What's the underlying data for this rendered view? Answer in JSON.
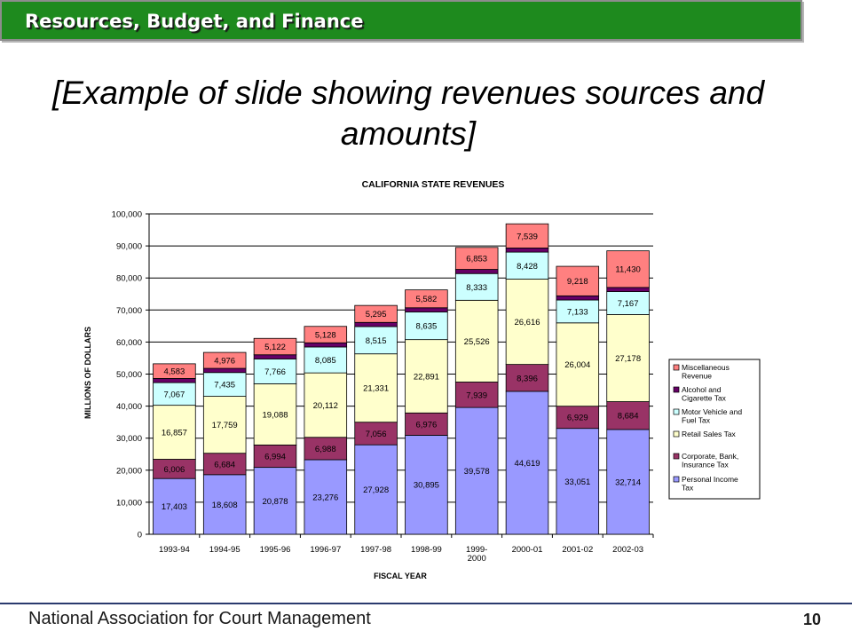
{
  "header": {
    "title": "Resources, Budget, and Finance"
  },
  "slide": {
    "title": "[Example of slide showing revenues sources and amounts]"
  },
  "footer": {
    "org": "National Association for Court Management",
    "page_number": "10"
  },
  "colors": {
    "header_bg": "#1e8a1e",
    "personal_income": "#9999ff",
    "corporate": "#993366",
    "retail_sales": "#ffffcc",
    "motor_vehicle": "#ccffff",
    "alcohol": "#660066",
    "misc": "#ff8080"
  },
  "chart_data": {
    "type": "bar",
    "stacked": true,
    "title": "CALIFORNIA STATE REVENUES",
    "xlabel": "FISCAL YEAR",
    "ylabel": "MILLIONS OF DOLLARS",
    "ylim": [
      0,
      100000
    ],
    "yticks": [
      "0",
      "10,000",
      "20,000",
      "30,000",
      "40,000",
      "50,000",
      "60,000",
      "70,000",
      "80,000",
      "90,000",
      "100,000"
    ],
    "grid": true,
    "legend_position": "right",
    "categories": [
      [
        "1993-94"
      ],
      [
        "1994-95"
      ],
      [
        "1995-96"
      ],
      [
        "1996-97"
      ],
      [
        "1997-98"
      ],
      [
        "1998-99"
      ],
      [
        "1999-",
        "2000"
      ],
      [
        "2000-01"
      ],
      [
        "2001-02"
      ],
      [
        "2002-03"
      ]
    ],
    "series": [
      {
        "name": "Personal Income Tax",
        "legend_lines": [
          "Personal Income",
          "Tax"
        ],
        "color": "#9999ff",
        "values": [
          17403,
          18608,
          20878,
          23276,
          27928,
          30895,
          39578,
          44619,
          33051,
          32714
        ],
        "labels": [
          "17,403",
          "18,608",
          "20,878",
          "23,276",
          "27,928",
          "30,895",
          "39,578",
          "44,619",
          "33,051",
          "32,714"
        ]
      },
      {
        "name": "Corporate, Bank, Insurance Tax",
        "legend_lines": [
          "Corporate, Bank,",
          "Insurance Tax"
        ],
        "color": "#993366",
        "values": [
          6006,
          6684,
          6994,
          6988,
          7056,
          6976,
          7939,
          8396,
          6929,
          8684
        ],
        "labels": [
          "6,006",
          "6,684",
          "6,994",
          "6,988",
          "7,056",
          "6,976",
          "7,939",
          "8,396",
          "6,929",
          "8,684"
        ]
      },
      {
        "name": "Retail Sales Tax",
        "legend_lines": [
          "Retail Sales Tax"
        ],
        "color": "#ffffcc",
        "values": [
          16857,
          17759,
          19088,
          20112,
          21331,
          22891,
          25526,
          26616,
          26004,
          27178
        ],
        "labels": [
          "16,857",
          "17,759",
          "19,088",
          "20,112",
          "21,331",
          "22,891",
          "25,526",
          "26,616",
          "26,004",
          "27,178"
        ]
      },
      {
        "name": "Motor Vehicle and Fuel Tax",
        "legend_lines": [
          "Motor Vehicle and",
          "Fuel Tax"
        ],
        "color": "#ccffff",
        "values": [
          7067,
          7435,
          7766,
          8085,
          8515,
          8635,
          8333,
          8428,
          7133,
          7167
        ],
        "labels": [
          "7,067",
          "7,435",
          "7,766",
          "8,085",
          "8,515",
          "8,635",
          "8,333",
          "8,428",
          "7,133",
          "7,167"
        ]
      },
      {
        "name": "Alcohol and Cigarette Tax",
        "legend_lines": [
          "Alcohol and",
          "Cigarette Tax"
        ],
        "color": "#660066",
        "values": [
          1300,
          1300,
          1300,
          1300,
          1300,
          1300,
          1300,
          1300,
          1300,
          1300
        ],
        "labels": []
      },
      {
        "name": "Miscellaneous Revenue",
        "legend_lines": [
          "Miscellaneous",
          "Revenue"
        ],
        "color": "#ff8080",
        "values": [
          4583,
          4976,
          5122,
          5128,
          5295,
          5582,
          6853,
          7539,
          9218,
          11430
        ],
        "labels": [
          "4,583",
          "4,976",
          "5,122",
          "5,128",
          "5,295",
          "5,582",
          "6,853",
          "7,539",
          "9,218",
          "11,430"
        ]
      }
    ]
  }
}
